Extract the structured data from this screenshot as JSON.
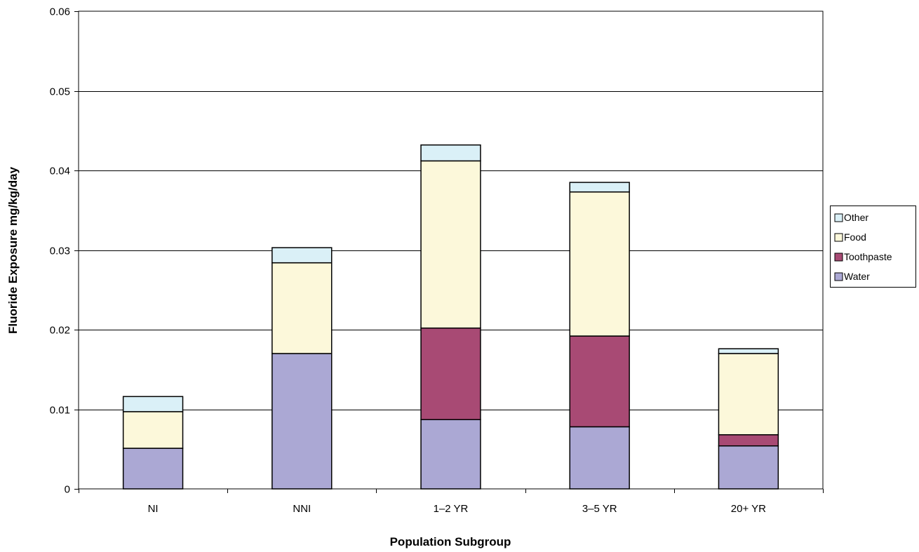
{
  "chart_data": {
    "type": "bar",
    "stacked": true,
    "title": "",
    "xlabel": "Population Subgroup",
    "ylabel": "Fluoride Exposure mg/kg/day",
    "ylim": [
      0,
      0.06
    ],
    "yticks": [
      0,
      0.01,
      0.02,
      0.03,
      0.04,
      0.05,
      0.06
    ],
    "ytick_labels": [
      "0",
      "0.01",
      "0.02",
      "0.03",
      "0.04",
      "0.05",
      "0.06"
    ],
    "grid": true,
    "legend_position": "right",
    "categories": [
      "NI",
      "NNI",
      "1–2 YR",
      "3–5 YR",
      "20+ YR"
    ],
    "series": [
      {
        "name": "Water",
        "color": "#ABA8D4",
        "values": [
          0.0051,
          0.017,
          0.0087,
          0.0078,
          0.0054
        ]
      },
      {
        "name": "Toothpaste",
        "color": "#A84A74",
        "values": [
          0.0,
          0.0,
          0.0115,
          0.0114,
          0.0014
        ]
      },
      {
        "name": "Food",
        "color": "#FCF8DA",
        "values": [
          0.0046,
          0.0114,
          0.021,
          0.0181,
          0.0102
        ]
      },
      {
        "name": "Other",
        "color": "#DAF0F7",
        "values": [
          0.0019,
          0.0019,
          0.002,
          0.0012,
          0.0006
        ]
      }
    ],
    "legend_order": [
      "Other",
      "Food",
      "Toothpaste",
      "Water"
    ]
  }
}
